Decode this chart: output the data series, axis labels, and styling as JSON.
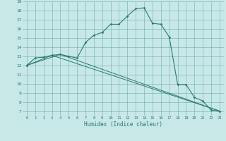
{
  "xlabel": "Humidex (Indice chaleur)",
  "bg_color": "#c8e8e8",
  "grid_color": "#6aacac",
  "line_color": "#2a7a6a",
  "xlim": [
    -0.5,
    23.5
  ],
  "ylim": [
    6.5,
    19.0
  ],
  "xticks": [
    0,
    1,
    2,
    3,
    4,
    5,
    6,
    7,
    8,
    9,
    10,
    11,
    12,
    13,
    14,
    15,
    16,
    17,
    18,
    19,
    20,
    21,
    22,
    23
  ],
  "yticks": [
    7,
    8,
    9,
    10,
    11,
    12,
    13,
    14,
    15,
    16,
    17,
    18,
    19
  ],
  "series": [
    [
      0,
      12.0
    ],
    [
      1,
      12.8
    ],
    [
      2,
      12.9
    ],
    [
      3,
      13.1
    ],
    [
      4,
      13.2
    ],
    [
      5,
      13.0
    ],
    [
      6,
      12.8
    ],
    [
      7,
      14.5
    ],
    [
      8,
      15.3
    ],
    [
      9,
      15.6
    ],
    [
      10,
      16.5
    ],
    [
      11,
      16.5
    ],
    [
      12,
      17.4
    ],
    [
      13,
      18.2
    ],
    [
      14,
      18.3
    ],
    [
      15,
      16.6
    ],
    [
      16,
      16.5
    ],
    [
      17,
      15.1
    ],
    [
      18,
      9.9
    ],
    [
      19,
      9.9
    ],
    [
      20,
      8.5
    ],
    [
      21,
      8.1
    ],
    [
      22,
      7.1
    ],
    [
      23,
      7.0
    ]
  ],
  "series2": [
    [
      0,
      12.0
    ],
    [
      3,
      13.1
    ],
    [
      23,
      7.0
    ]
  ],
  "series3": [
    [
      0,
      12.0
    ],
    [
      4,
      13.2
    ],
    [
      23,
      7.0
    ]
  ]
}
